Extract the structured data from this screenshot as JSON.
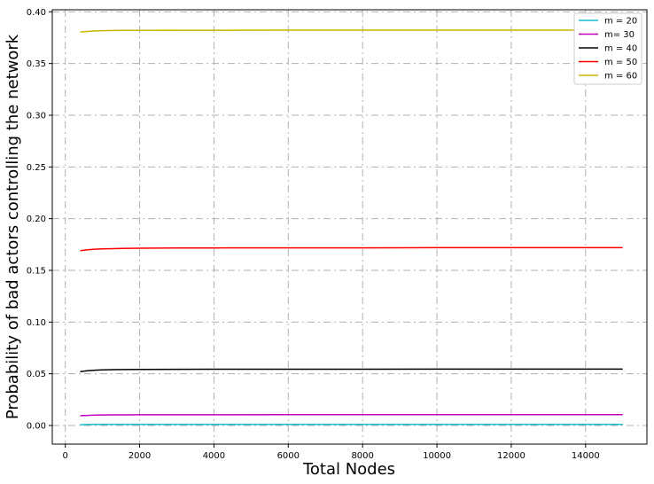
{
  "chart_data": {
    "type": "line",
    "title": "",
    "xlabel": "Total Nodes",
    "ylabel": "Probability of bad actors controlling the network",
    "xlim": [
      -350,
      15650
    ],
    "ylim": [
      -0.018,
      0.402
    ],
    "xticks": [
      0,
      2000,
      4000,
      6000,
      8000,
      10000,
      12000,
      14000
    ],
    "xtick_labels": [
      "0",
      "2000",
      "4000",
      "6000",
      "8000",
      "10000",
      "12000",
      "14000"
    ],
    "yticks": [
      0.0,
      0.05,
      0.1,
      0.15,
      0.2,
      0.25,
      0.3,
      0.35,
      0.4
    ],
    "ytick_labels": [
      "0.00",
      "0.05",
      "0.10",
      "0.15",
      "0.20",
      "0.25",
      "0.30",
      "0.35",
      "0.40"
    ],
    "grid": true,
    "legend_position": "top-right",
    "x": [
      400,
      600,
      800,
      1000,
      1500,
      2000,
      3000,
      4000,
      6000,
      8000,
      10000,
      12000,
      14000,
      15000
    ],
    "series": [
      {
        "name": "m = 20",
        "color": "#17becf",
        "values": [
          0.0008,
          0.0009,
          0.001,
          0.001,
          0.001,
          0.001,
          0.001,
          0.001,
          0.001,
          0.001,
          0.001,
          0.001,
          0.001,
          0.001
        ]
      },
      {
        "name": "m= 30",
        "color": "#bf00bf",
        "values": [
          0.0095,
          0.0098,
          0.01,
          0.0102,
          0.0103,
          0.0104,
          0.0104,
          0.0104,
          0.0105,
          0.0105,
          0.0105,
          0.0105,
          0.0105,
          0.0105
        ]
      },
      {
        "name": "m = 40",
        "color": "#000000",
        "values": [
          0.052,
          0.053,
          0.0535,
          0.0538,
          0.0541,
          0.0542,
          0.0543,
          0.0544,
          0.0544,
          0.0544,
          0.0545,
          0.0545,
          0.0545,
          0.0545
        ]
      },
      {
        "name": "m = 50",
        "color": "#ff0000",
        "values": [
          0.169,
          0.17,
          0.1705,
          0.1708,
          0.1712,
          0.1714,
          0.1716,
          0.1717,
          0.1718,
          0.1718,
          0.1719,
          0.1719,
          0.1719,
          0.1719
        ]
      },
      {
        "name": "m = 60",
        "color": "#c8b400",
        "values": [
          0.3805,
          0.381,
          0.3815,
          0.3818,
          0.382,
          0.3821,
          0.3822,
          0.3822,
          0.3823,
          0.3823,
          0.3823,
          0.3823,
          0.3823,
          0.3823
        ]
      }
    ]
  }
}
